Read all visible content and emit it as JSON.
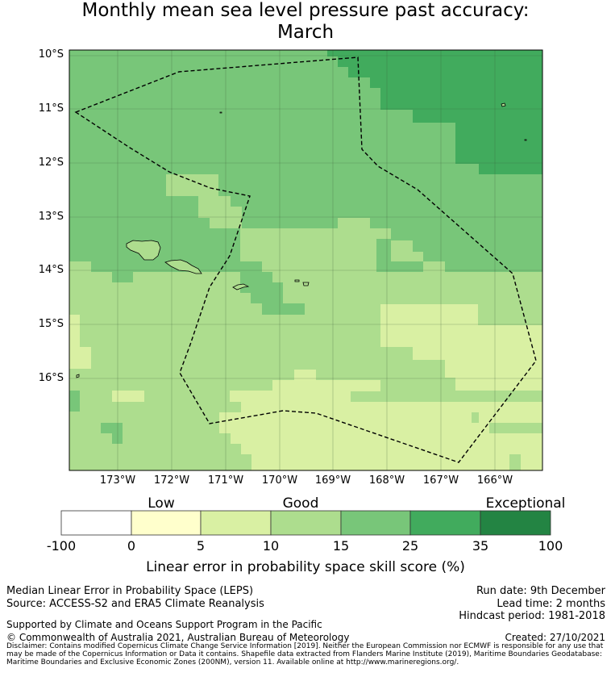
{
  "title_line1": "Monthly mean sea level pressure past accuracy:",
  "title_line2": "March",
  "lat_labels": [
    "10°S",
    "11°S",
    "12°S",
    "13°S",
    "14°S",
    "15°S",
    "16°S"
  ],
  "lon_labels": [
    "173°W",
    "172°W",
    "171°W",
    "170°W",
    "169°W",
    "168°W",
    "167°W",
    "166°W"
  ],
  "colorbar": {
    "category_labels": [
      "Low",
      "Good",
      "Exceptional"
    ],
    "ticks": [
      "-100",
      "0",
      "5",
      "10",
      "15",
      "25",
      "35",
      "100"
    ],
    "colors": [
      "#ffffff",
      "#ffffcc",
      "#d9f0a3",
      "#addd8e",
      "#78c679",
      "#41ab5d",
      "#238443"
    ],
    "title": "Linear error in probability space skill score (%)"
  },
  "footer": {
    "left1": "Median Linear Error in Probability Space (LEPS)",
    "left2": "Source: ACCESS-S2 and ERA5 Climate Reanalysis",
    "left3": "Supported by Climate and Oceans Support Program in the Pacific",
    "left4": "© Commonwealth of Australia 2021, Australian Bureau of Meteorology",
    "right1": "Run date: 9th December",
    "right2": "Lead time: 2 months",
    "right3": "Hindcast period: 1981-2018",
    "right4": "Created: 27/10/2021",
    "disclaimer": "Disclaimer: Contains modified Copernicus Climate Change Service Information [2019]. Neither the European Commission nor ECMWF is responsible for any use that may be made of the Copernicus Information or Data it contains. Shapefile data extracted from Flanders Marine Institute (2019), Maritime Boundaries Geodatabase: Maritime Boundaries and Exclusive Economic Zones (200NM), version 11. Available online at http://www.marineregions.org/."
  }
}
